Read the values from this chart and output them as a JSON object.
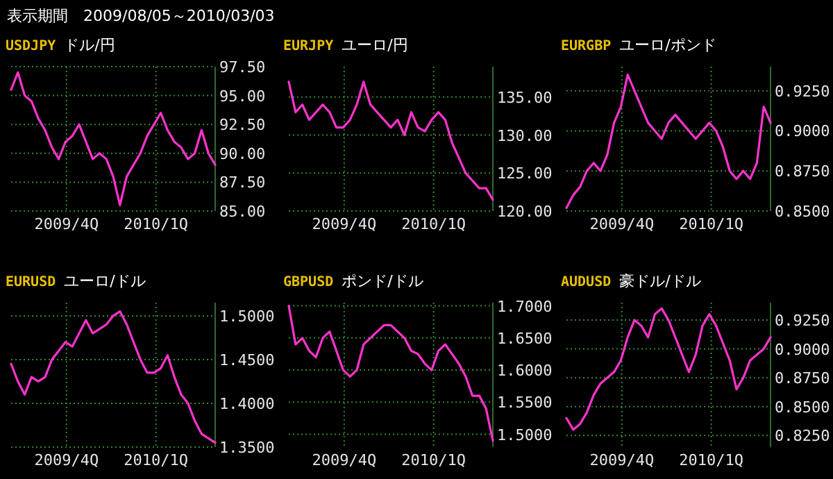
{
  "chart_data": [
    {
      "type": "line",
      "title": "USDJPY",
      "subtitle": "ドル/円",
      "annotations": [
        "表示期間　2009/08/05～2010/03/03"
      ],
      "grid": true,
      "x": [
        "2009-08-05",
        "2009-08-12",
        "2009-08-19",
        "2009-08-26",
        "2009-09-02",
        "2009-09-09",
        "2009-09-16",
        "2009-09-23",
        "2009-09-30",
        "2009-10-07",
        "2009-10-14",
        "2009-10-21",
        "2009-10-28",
        "2009-11-04",
        "2009-11-11",
        "2009-11-18",
        "2009-11-25",
        "2009-12-02",
        "2009-12-09",
        "2009-12-16",
        "2009-12-23",
        "2009-12-30",
        "2010-01-06",
        "2010-01-13",
        "2010-01-20",
        "2010-01-27",
        "2010-02-03",
        "2010-02-10",
        "2010-02-17",
        "2010-02-24",
        "2010-03-03"
      ],
      "xlim": [
        "2009-08-05",
        "2010-03-03"
      ],
      "xticks": [
        {
          "value": "2009-10-01",
          "label": "2009/4Q"
        },
        {
          "value": "2010-01-01",
          "label": "2010/1Q"
        }
      ],
      "ylim": [
        85,
        97.5
      ],
      "yticks": [
        {
          "value": 85,
          "label": "85.00"
        },
        {
          "value": 87.5,
          "label": "87.50"
        },
        {
          "value": 90,
          "label": "90.00"
        },
        {
          "value": 92.5,
          "label": "92.50"
        },
        {
          "value": 95,
          "label": "95.00"
        },
        {
          "value": 97.5,
          "label": "97.50"
        }
      ],
      "series": [
        {
          "color": "#ff33cc",
          "values": [
            95.5,
            97.0,
            95.0,
            94.5,
            93.0,
            92.0,
            90.5,
            89.5,
            91.0,
            91.5,
            92.5,
            91.0,
            89.5,
            90.0,
            89.5,
            88.0,
            85.5,
            88.0,
            89.0,
            90.0,
            91.5,
            92.5,
            93.5,
            92.0,
            91.0,
            90.5,
            89.5,
            90.0,
            92.0,
            90.0,
            89.0
          ]
        }
      ]
    },
    {
      "type": "line",
      "title": "EURJPY",
      "subtitle": "ユーロ/円",
      "grid": true,
      "x": [
        "2009-08-05",
        "2009-08-12",
        "2009-08-19",
        "2009-08-26",
        "2009-09-02",
        "2009-09-09",
        "2009-09-16",
        "2009-09-23",
        "2009-09-30",
        "2009-10-07",
        "2009-10-14",
        "2009-10-21",
        "2009-10-28",
        "2009-11-04",
        "2009-11-11",
        "2009-11-18",
        "2009-11-25",
        "2009-12-02",
        "2009-12-09",
        "2009-12-16",
        "2009-12-23",
        "2009-12-30",
        "2010-01-06",
        "2010-01-13",
        "2010-01-20",
        "2010-01-27",
        "2010-02-03",
        "2010-02-10",
        "2010-02-17",
        "2010-02-24",
        "2010-03-03"
      ],
      "xlim": [
        "2009-08-05",
        "2010-03-03"
      ],
      "xticks": [
        {
          "value": "2009-10-01",
          "label": "2009/4Q"
        },
        {
          "value": "2010-01-01",
          "label": "2010/1Q"
        }
      ],
      "ylim": [
        120,
        139
      ],
      "yticks": [
        {
          "value": 120,
          "label": "120.00"
        },
        {
          "value": 125,
          "label": "125.00"
        },
        {
          "value": 130,
          "label": "130.00"
        },
        {
          "value": 135,
          "label": "135.00"
        }
      ],
      "series": [
        {
          "color": "#ff33cc",
          "values": [
            137,
            133,
            134,
            132,
            133,
            134,
            133,
            131,
            131,
            132,
            134,
            137,
            134,
            133,
            132,
            131,
            132,
            130,
            133,
            131,
            130.5,
            132,
            133,
            132,
            129,
            127,
            125,
            124,
            123,
            123,
            121.5
          ]
        }
      ]
    },
    {
      "type": "line",
      "title": "EURGBP",
      "subtitle": "ユーロ/ポンド",
      "grid": true,
      "x": [
        "2009-08-05",
        "2009-08-12",
        "2009-08-19",
        "2009-08-26",
        "2009-09-02",
        "2009-09-09",
        "2009-09-16",
        "2009-09-23",
        "2009-09-30",
        "2009-10-07",
        "2009-10-14",
        "2009-10-21",
        "2009-10-28",
        "2009-11-04",
        "2009-11-11",
        "2009-11-18",
        "2009-11-25",
        "2009-12-02",
        "2009-12-09",
        "2009-12-16",
        "2009-12-23",
        "2009-12-30",
        "2010-01-06",
        "2010-01-13",
        "2010-01-20",
        "2010-01-27",
        "2010-02-03",
        "2010-02-10",
        "2010-02-17",
        "2010-02-24",
        "2010-03-03"
      ],
      "xlim": [
        "2009-08-05",
        "2010-03-03"
      ],
      "xticks": [
        {
          "value": "2009-10-01",
          "label": "2009/4Q"
        },
        {
          "value": "2010-01-01",
          "label": "2010/1Q"
        }
      ],
      "ylim": [
        0.85,
        0.94
      ],
      "yticks": [
        {
          "value": 0.85,
          "label": "0.8500"
        },
        {
          "value": 0.875,
          "label": "0.8750"
        },
        {
          "value": 0.9,
          "label": "0.9000"
        },
        {
          "value": 0.925,
          "label": "0.9250"
        }
      ],
      "series": [
        {
          "color": "#ff33cc",
          "values": [
            0.852,
            0.86,
            0.865,
            0.875,
            0.88,
            0.875,
            0.885,
            0.905,
            0.915,
            0.935,
            0.925,
            0.915,
            0.905,
            0.9,
            0.895,
            0.905,
            0.91,
            0.905,
            0.9,
            0.895,
            0.9,
            0.905,
            0.9,
            0.89,
            0.875,
            0.87,
            0.875,
            0.87,
            0.88,
            0.915,
            0.905
          ]
        }
      ]
    },
    {
      "type": "line",
      "title": "EURUSD",
      "subtitle": "ユーロ/ドル",
      "grid": true,
      "x": [
        "2009-08-05",
        "2009-08-12",
        "2009-08-19",
        "2009-08-26",
        "2009-09-02",
        "2009-09-09",
        "2009-09-16",
        "2009-09-23",
        "2009-09-30",
        "2009-10-07",
        "2009-10-14",
        "2009-10-21",
        "2009-10-28",
        "2009-11-04",
        "2009-11-11",
        "2009-11-18",
        "2009-11-25",
        "2009-12-02",
        "2009-12-09",
        "2009-12-16",
        "2009-12-23",
        "2009-12-30",
        "2010-01-06",
        "2010-01-13",
        "2010-01-20",
        "2010-01-27",
        "2010-02-03",
        "2010-02-10",
        "2010-02-17",
        "2010-02-24",
        "2010-03-03"
      ],
      "xlim": [
        "2009-08-05",
        "2010-03-03"
      ],
      "xticks": [
        {
          "value": "2009-10-01",
          "label": "2009/4Q"
        },
        {
          "value": "2010-01-01",
          "label": "2010/1Q"
        }
      ],
      "ylim": [
        1.35,
        1.515
      ],
      "yticks": [
        {
          "value": 1.35,
          "label": "1.3500"
        },
        {
          "value": 1.4,
          "label": "1.4000"
        },
        {
          "value": 1.45,
          "label": "1.4500"
        },
        {
          "value": 1.5,
          "label": "1.5000"
        }
      ],
      "series": [
        {
          "color": "#ff33cc",
          "values": [
            1.445,
            1.425,
            1.41,
            1.43,
            1.425,
            1.43,
            1.45,
            1.46,
            1.47,
            1.465,
            1.48,
            1.495,
            1.48,
            1.485,
            1.49,
            1.5,
            1.505,
            1.49,
            1.47,
            1.45,
            1.435,
            1.435,
            1.44,
            1.455,
            1.43,
            1.41,
            1.4,
            1.38,
            1.365,
            1.36,
            1.355
          ]
        }
      ]
    },
    {
      "type": "line",
      "title": "GBPUSD",
      "subtitle": "ポンド/ドル",
      "grid": true,
      "x": [
        "2009-08-05",
        "2009-08-12",
        "2009-08-19",
        "2009-08-26",
        "2009-09-02",
        "2009-09-09",
        "2009-09-16",
        "2009-09-23",
        "2009-09-30",
        "2009-10-07",
        "2009-10-14",
        "2009-10-21",
        "2009-10-28",
        "2009-11-04",
        "2009-11-11",
        "2009-11-18",
        "2009-11-25",
        "2009-12-02",
        "2009-12-09",
        "2009-12-16",
        "2009-12-23",
        "2009-12-30",
        "2010-01-06",
        "2010-01-13",
        "2010-01-20",
        "2010-01-27",
        "2010-02-03",
        "2010-02-10",
        "2010-02-17",
        "2010-02-24",
        "2010-03-03"
      ],
      "xlim": [
        "2009-08-05",
        "2010-03-03"
      ],
      "xticks": [
        {
          "value": "2009-10-01",
          "label": "2009/4Q"
        },
        {
          "value": "2010-01-01",
          "label": "2010/1Q"
        }
      ],
      "ylim": [
        1.48,
        1.705
      ],
      "yticks": [
        {
          "value": 1.5,
          "label": "1.5000"
        },
        {
          "value": 1.55,
          "label": "1.5500"
        },
        {
          "value": 1.6,
          "label": "1.6000"
        },
        {
          "value": 1.65,
          "label": "1.6500"
        },
        {
          "value": 1.7,
          "label": "1.7000"
        }
      ],
      "series": [
        {
          "color": "#ff33cc",
          "values": [
            1.7,
            1.64,
            1.65,
            1.63,
            1.62,
            1.65,
            1.66,
            1.63,
            1.6,
            1.59,
            1.6,
            1.64,
            1.65,
            1.66,
            1.67,
            1.67,
            1.66,
            1.65,
            1.63,
            1.625,
            1.61,
            1.6,
            1.63,
            1.64,
            1.625,
            1.61,
            1.59,
            1.56,
            1.56,
            1.54,
            1.49
          ]
        }
      ]
    },
    {
      "type": "line",
      "title": "AUDUSD",
      "subtitle": "豪ドル/ドル",
      "grid": true,
      "x": [
        "2009-08-05",
        "2009-08-12",
        "2009-08-19",
        "2009-08-26",
        "2009-09-02",
        "2009-09-09",
        "2009-09-16",
        "2009-09-23",
        "2009-09-30",
        "2009-10-07",
        "2009-10-14",
        "2009-10-21",
        "2009-10-28",
        "2009-11-04",
        "2009-11-11",
        "2009-11-18",
        "2009-11-25",
        "2009-12-02",
        "2009-12-09",
        "2009-12-16",
        "2009-12-23",
        "2009-12-30",
        "2010-01-06",
        "2010-01-13",
        "2010-01-20",
        "2010-01-27",
        "2010-02-03",
        "2010-02-10",
        "2010-02-17",
        "2010-02-24",
        "2010-03-03"
      ],
      "xlim": [
        "2009-08-05",
        "2010-03-03"
      ],
      "xticks": [
        {
          "value": "2009-10-01",
          "label": "2009/4Q"
        },
        {
          "value": "2010-01-01",
          "label": "2010/1Q"
        }
      ],
      "ylim": [
        0.815,
        0.94
      ],
      "yticks": [
        {
          "value": 0.825,
          "label": "0.8250"
        },
        {
          "value": 0.85,
          "label": "0.8500"
        },
        {
          "value": 0.875,
          "label": "0.8750"
        },
        {
          "value": 0.9,
          "label": "0.9000"
        },
        {
          "value": 0.925,
          "label": "0.9250"
        }
      ],
      "series": [
        {
          "color": "#ff33cc",
          "values": [
            0.84,
            0.83,
            0.835,
            0.845,
            0.86,
            0.87,
            0.875,
            0.88,
            0.89,
            0.91,
            0.925,
            0.92,
            0.91,
            0.93,
            0.935,
            0.925,
            0.91,
            0.895,
            0.88,
            0.895,
            0.92,
            0.93,
            0.92,
            0.905,
            0.89,
            0.865,
            0.875,
            0.89,
            0.895,
            0.9,
            0.91
          ]
        }
      ]
    }
  ]
}
